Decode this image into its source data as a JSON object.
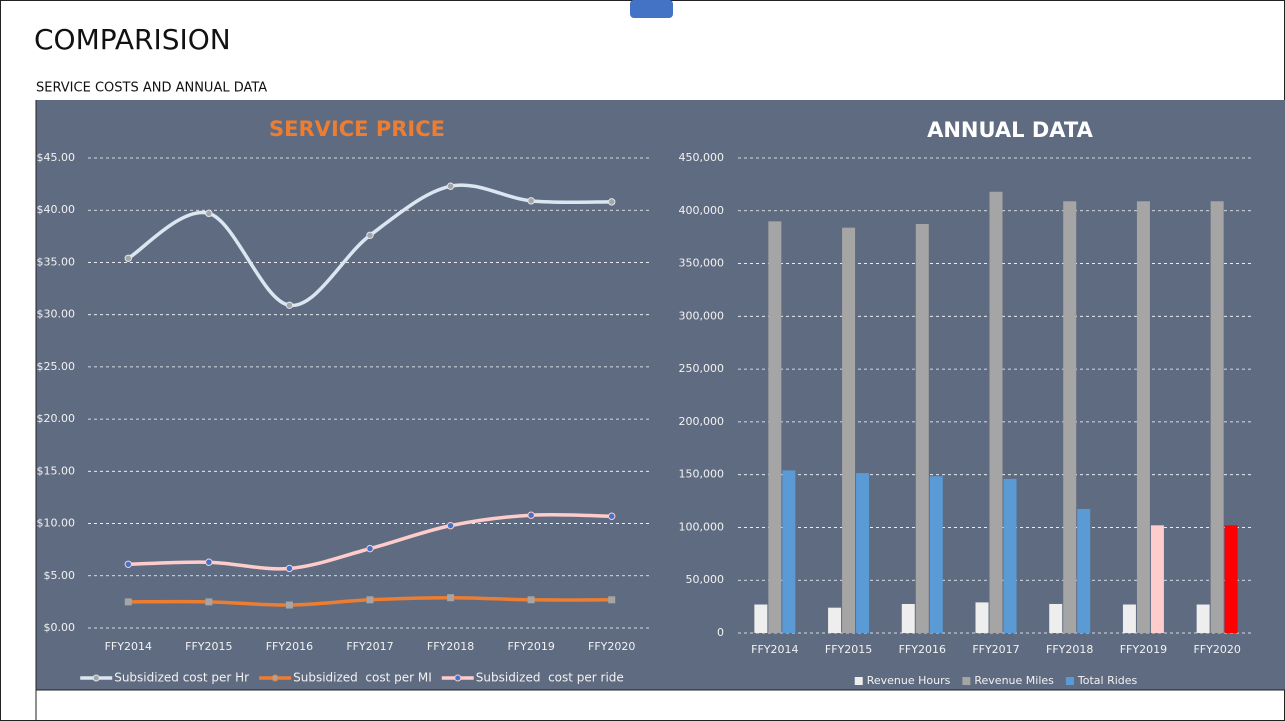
{
  "header": {
    "title": "COMPARISION",
    "subtitle": "SERVICE COSTS AND ANNUAL DATA"
  },
  "chart_data": [
    {
      "type": "line",
      "title": "SERVICE PRICE",
      "title_color": "#ed7d31",
      "smooth": true,
      "grid": true,
      "legend": "bottom",
      "categories": [
        "FFY2014",
        "FFY2015",
        "FFY2016",
        "FFY2017",
        "FFY2018",
        "FFY2019",
        "FFY2020"
      ],
      "series": [
        {
          "name": "Subsidized cost per Hr",
          "color": "#dce6f2",
          "values": [
            35.4,
            39.7,
            30.9,
            37.6,
            42.3,
            40.9,
            40.8
          ]
        },
        {
          "name": "Subsidized  cost per MI",
          "color": "#ed7d31",
          "values": [
            2.5,
            2.5,
            2.2,
            2.7,
            2.9,
            2.7,
            2.7
          ]
        },
        {
          "name": "Subsidized  cost per ride",
          "color": "#ffcccc",
          "values": [
            6.1,
            6.3,
            5.7,
            7.6,
            9.8,
            10.8,
            10.7
          ]
        }
      ],
      "ylim": [
        0,
        45
      ],
      "yticks": [
        {
          "value": 0,
          "label": "$0.00"
        },
        {
          "value": 5,
          "label": "$5.00"
        },
        {
          "value": 10,
          "label": "$10.00"
        },
        {
          "value": 15,
          "label": "$15.00"
        },
        {
          "value": 20,
          "label": "$20.00"
        },
        {
          "value": 25,
          "label": "$25.00"
        },
        {
          "value": 30,
          "label": "$30.00"
        },
        {
          "value": 35,
          "label": "$35.00"
        },
        {
          "value": 40,
          "label": "$40.00"
        },
        {
          "value": 45,
          "label": "$45.00"
        }
      ]
    },
    {
      "type": "bar",
      "title": "ANNUAL DATA",
      "title_color": "#ffffff",
      "grid": true,
      "legend": "bottom",
      "categories": [
        "FFY2014",
        "FFY2015",
        "FFY2016",
        "FFY2017",
        "FFY2018",
        "FFY2019",
        "FFY2020"
      ],
      "series": [
        {
          "name": "Revenue Hours",
          "color": "#eeeeee",
          "values": [
            27000,
            24000,
            27500,
            29000,
            27500,
            27000,
            27000
          ]
        },
        {
          "name": "Revenue Miles",
          "color": "#a5a5a5",
          "values": [
            390000,
            384000,
            387500,
            418000,
            409000,
            409000,
            409000
          ]
        },
        {
          "name": "Total Rides",
          "color": "#5b9bd5",
          "colors": [
            "#5b9bd5",
            "#5b9bd5",
            "#5b9bd5",
            "#5b9bd5",
            "#5b9bd5",
            "#ffcccc",
            "#ff0000"
          ],
          "values": [
            154000,
            151500,
            148500,
            146000,
            117500,
            102000,
            102000
          ]
        }
      ],
      "ylim": [
        0,
        450000
      ],
      "yticks": [
        0,
        {
          "value": 50000,
          "label": "50,000"
        },
        {
          "value": 100000,
          "label": "100,000"
        },
        {
          "value": 150000,
          "label": "150,000"
        },
        {
          "value": 200000,
          "label": "200,000"
        },
        {
          "value": 250000,
          "label": "250,000"
        },
        {
          "value": 300000,
          "label": "300,000"
        },
        {
          "value": 350000,
          "label": "350,000"
        },
        {
          "value": 400000,
          "label": "400,000"
        },
        {
          "value": 450000,
          "label": "450,000"
        }
      ]
    }
  ]
}
